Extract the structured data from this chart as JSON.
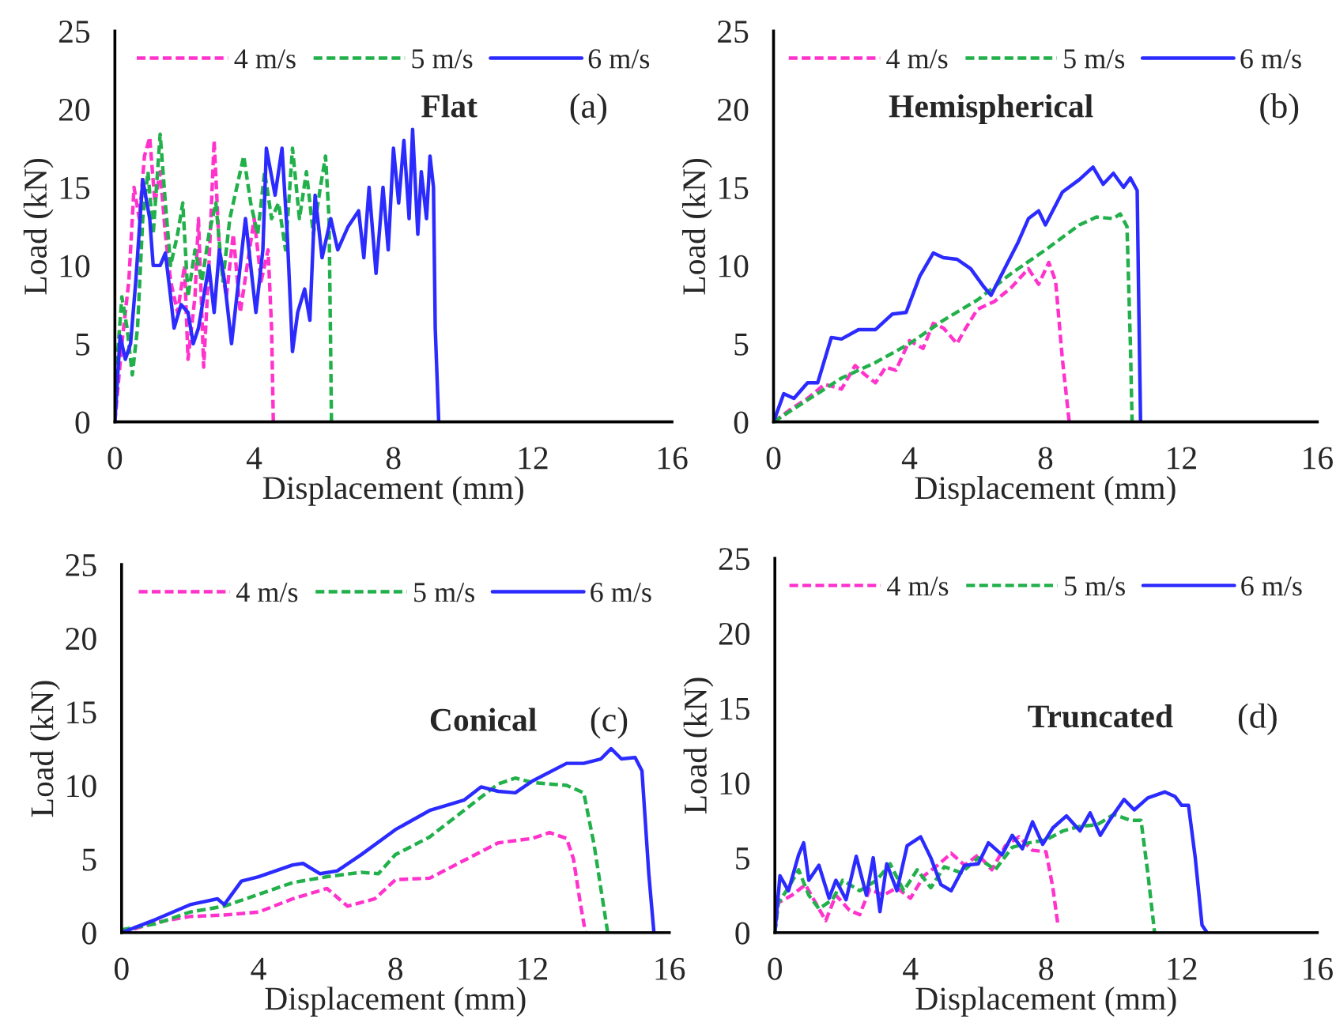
{
  "chart_data": [
    {
      "type": "line",
      "annotations": [
        "Flat",
        "(a)"
      ],
      "xlabel": "Displacement (mm)",
      "ylabel": "Load (kN)",
      "xlim": [
        0,
        16
      ],
      "ylim": [
        0,
        25
      ],
      "xticks": [
        0,
        4,
        8,
        12,
        16
      ],
      "yticks": [
        0,
        5,
        10,
        15,
        20,
        25
      ],
      "legend": "top",
      "grid": false,
      "series": [
        {
          "name": "4 m/s",
          "color": "#ff33cc",
          "line_style": "dashed",
          "x": [
            0,
            0.2,
            0.4,
            0.55,
            0.7,
            0.85,
            1.0,
            1.15,
            1.3,
            1.45,
            1.6,
            1.8,
            2.0,
            2.1,
            2.3,
            2.4,
            2.55,
            2.7,
            2.85,
            3.0,
            3.2,
            3.4,
            3.6,
            3.8,
            4.0,
            4.2,
            4.4,
            4.5,
            4.55
          ],
          "values": [
            0,
            5,
            9,
            15,
            13,
            17,
            18.2,
            14,
            16,
            12,
            9,
            7,
            10,
            4,
            8,
            13,
            3.5,
            10,
            18,
            11,
            8,
            12,
            7,
            10,
            13,
            9,
            11,
            6,
            0
          ]
        },
        {
          "name": "5 m/s",
          "color": "#22b04b",
          "line_style": "dashed",
          "x": [
            0,
            0.2,
            0.35,
            0.5,
            0.65,
            0.8,
            0.95,
            1.1,
            1.3,
            1.45,
            1.6,
            1.8,
            1.95,
            2.1,
            2.3,
            2.5,
            2.7,
            2.9,
            3.1,
            3.3,
            3.5,
            3.7,
            3.9,
            4.1,
            4.3,
            4.5,
            4.7,
            4.9,
            5.1,
            5.3,
            5.5,
            5.7,
            5.9,
            6.05,
            6.15,
            6.2,
            6.22
          ],
          "values": [
            2,
            8,
            6,
            3,
            6,
            13,
            16,
            12,
            18.4,
            14,
            10,
            12,
            14,
            8,
            11,
            9,
            12,
            14,
            9,
            13,
            15,
            17,
            14,
            12,
            16,
            13,
            14,
            11,
            17.5,
            13,
            16,
            12,
            15,
            17,
            13,
            4,
            0
          ]
        },
        {
          "name": "6 m/s",
          "color": "#2b2bff",
          "line_style": "solid",
          "x": [
            0,
            0.15,
            0.3,
            0.45,
            0.6,
            0.8,
            1.0,
            1.1,
            1.3,
            1.45,
            1.6,
            1.7,
            1.9,
            2.1,
            2.25,
            2.4,
            2.55,
            2.7,
            2.85,
            3.0,
            3.15,
            3.35,
            3.55,
            3.75,
            3.9,
            4.05,
            4.25,
            4.35,
            4.6,
            4.8,
            4.95,
            5.1,
            5.25,
            5.45,
            5.6,
            5.75,
            5.95,
            6.2,
            6.4,
            6.7,
            7.0,
            7.15,
            7.3,
            7.5,
            7.7,
            7.85,
            8.0,
            8.15,
            8.3,
            8.45,
            8.55,
            8.7,
            8.8,
            8.95,
            9.05,
            9.15,
            9.2,
            9.3
          ],
          "values": [
            0,
            5.5,
            4,
            5,
            9,
            15.5,
            13,
            10,
            10,
            10.8,
            8,
            6,
            7.5,
            7,
            5,
            6,
            8,
            10,
            7,
            11,
            9,
            5,
            9,
            13,
            10,
            7,
            11,
            17.5,
            14.5,
            17.5,
            12,
            4.5,
            7,
            8.5,
            6.5,
            14.5,
            10.5,
            13,
            11,
            12.5,
            13.5,
            10.5,
            15,
            9.5,
            15,
            11,
            17.5,
            14,
            18,
            13,
            18.7,
            12,
            16,
            13,
            17,
            15,
            6,
            0
          ]
        }
      ]
    },
    {
      "type": "line",
      "annotations": [
        "Hemispherical",
        "(b)"
      ],
      "xlabel": "Displacement (mm)",
      "ylabel": "Load (kN)",
      "xlim": [
        0,
        16
      ],
      "ylim": [
        0,
        25
      ],
      "xticks": [
        0,
        4,
        8,
        12,
        16
      ],
      "yticks": [
        0,
        5,
        10,
        15,
        20,
        25
      ],
      "legend": "top",
      "grid": false,
      "series": [
        {
          "name": "4 m/s",
          "color": "#ff33cc",
          "line_style": "dashed",
          "x": [
            0,
            0.5,
            1.0,
            1.5,
            2.0,
            2.4,
            2.7,
            3.0,
            3.3,
            3.6,
            4.0,
            4.4,
            4.7,
            5.0,
            5.4,
            5.6,
            6.0,
            6.5,
            7.0,
            7.5,
            7.8,
            8.1,
            8.3,
            8.5,
            8.7
          ],
          "values": [
            0,
            0.8,
            1.5,
            2.4,
            2.1,
            3.6,
            3.0,
            2.5,
            3.5,
            3.3,
            5.2,
            4.7,
            6.3,
            6.0,
            5.0,
            5.8,
            7.2,
            7.7,
            8.6,
            9.8,
            8.8,
            10.2,
            9.0,
            4.0,
            0
          ]
        },
        {
          "name": "5 m/s",
          "color": "#22b04b",
          "line_style": "dashed",
          "x": [
            0,
            1,
            2,
            3,
            4,
            5,
            6,
            7,
            8,
            9,
            9.5,
            10,
            10.2,
            10.4,
            10.5,
            10.55
          ],
          "values": [
            0,
            1.4,
            2.8,
            3.8,
            5.0,
            6.5,
            7.8,
            9.5,
            11.0,
            12.6,
            13.1,
            13.0,
            13.3,
            12.5,
            5,
            0
          ]
        },
        {
          "name": "6 m/s",
          "color": "#2b2bff",
          "line_style": "solid",
          "x": [
            0,
            0.3,
            0.6,
            1.0,
            1.3,
            1.7,
            2.0,
            2.5,
            3.0,
            3.5,
            3.9,
            4.3,
            4.7,
            5.0,
            5.4,
            5.8,
            6.2,
            6.4,
            6.8,
            7.2,
            7.5,
            7.8,
            8.0,
            8.5,
            9.0,
            9.4,
            9.7,
            10.0,
            10.3,
            10.5,
            10.7,
            10.75,
            10.8
          ],
          "values": [
            0,
            1.8,
            1.5,
            2.5,
            2.5,
            5.4,
            5.3,
            5.9,
            5.9,
            6.9,
            7.0,
            9.3,
            10.8,
            10.5,
            10.4,
            9.8,
            8.6,
            8.1,
            9.8,
            11.5,
            13.0,
            13.5,
            12.6,
            14.7,
            15.5,
            16.3,
            15.2,
            15.9,
            15.0,
            15.6,
            14.8,
            7,
            0
          ]
        }
      ]
    },
    {
      "type": "line",
      "annotations": [
        "Conical",
        "(c)"
      ],
      "xlabel": "Displacement (mm)",
      "ylabel": "Load (kN)",
      "xlim": [
        0,
        16
      ],
      "ylim": [
        0,
        25
      ],
      "xticks": [
        0,
        4,
        8,
        12,
        16
      ],
      "yticks": [
        0,
        5,
        10,
        15,
        20,
        25
      ],
      "legend": "top",
      "grid": false,
      "series": [
        {
          "name": "4 m/s",
          "color": "#ff33cc",
          "line_style": "dashed",
          "x": [
            0,
            1,
            2,
            3,
            4,
            5,
            6,
            6.6,
            7.4,
            8,
            9,
            10,
            11,
            12,
            12.5,
            13,
            13.2,
            13.4,
            13.55
          ],
          "values": [
            0,
            0.7,
            1.1,
            1.2,
            1.4,
            2.3,
            3.0,
            1.8,
            2.3,
            3.6,
            3.7,
            4.9,
            6.1,
            6.4,
            6.8,
            6.4,
            5.0,
            2,
            0
          ]
        },
        {
          "name": "5 m/s",
          "color": "#22b04b",
          "line_style": "dashed",
          "x": [
            0,
            1,
            2,
            3,
            4,
            5,
            6,
            7,
            7.5,
            8,
            9,
            10,
            11,
            11.5,
            12,
            13,
            13.5,
            13.8,
            14.0,
            14.2
          ],
          "values": [
            0.2,
            0.6,
            1.4,
            1.8,
            2.6,
            3.4,
            3.8,
            4.1,
            4.0,
            5.3,
            6.5,
            8.3,
            10.1,
            10.5,
            10.2,
            10.0,
            9.5,
            6,
            3,
            0
          ]
        },
        {
          "name": "6 m/s",
          "color": "#2b2bff",
          "line_style": "solid",
          "x": [
            0,
            1,
            2,
            2.8,
            3,
            3.5,
            4,
            5,
            5.3,
            5.8,
            6.3,
            7,
            8,
            9,
            10,
            10.5,
            11,
            11.5,
            12,
            13,
            13.5,
            14,
            14.3,
            14.6,
            15.0,
            15.2,
            15.4,
            15.55
          ],
          "values": [
            0,
            0.9,
            1.9,
            2.3,
            1.9,
            3.5,
            3.8,
            4.6,
            4.7,
            4.0,
            4.2,
            5.3,
            7.0,
            8.3,
            9.0,
            9.9,
            9.6,
            9.5,
            10.3,
            11.5,
            11.5,
            11.8,
            12.5,
            11.8,
            11.9,
            11.0,
            4,
            0
          ]
        }
      ]
    },
    {
      "type": "line",
      "annotations": [
        "Truncated",
        "(d)"
      ],
      "xlabel": "Displacement (mm)",
      "ylabel": "Load (kN)",
      "xlim": [
        0,
        16
      ],
      "ylim": [
        0,
        25
      ],
      "xticks": [
        0,
        4,
        8,
        12,
        16
      ],
      "yticks": [
        0,
        5,
        10,
        15,
        20,
        25
      ],
      "legend": "top",
      "grid": false,
      "series": [
        {
          "name": "4 m/s",
          "color": "#ff33cc",
          "line_style": "dashed",
          "x": [
            0,
            0.1,
            0.5,
            0.9,
            1.2,
            1.5,
            1.8,
            2.2,
            2.5,
            2.8,
            3.2,
            3.6,
            4.0,
            4.4,
            4.8,
            5.2,
            5.6,
            6.0,
            6.4,
            6.8,
            7.2,
            7.6,
            8.0,
            8.2,
            8.35
          ],
          "values": [
            0,
            2,
            2.5,
            3.2,
            2.0,
            0.8,
            2.5,
            1.5,
            1.2,
            2.9,
            2.5,
            3.0,
            2.3,
            3.8,
            4.5,
            5.3,
            4.5,
            5.2,
            4.2,
            5.8,
            6.4,
            5.5,
            5.4,
            3,
            0.5
          ]
        },
        {
          "name": "5 m/s",
          "color": "#22b04b",
          "line_style": "dashed",
          "x": [
            0,
            0.1,
            0.4,
            0.7,
            1.0,
            1.3,
            1.7,
            2.0,
            2.5,
            3.0,
            3.4,
            3.8,
            4.2,
            4.6,
            5.0,
            5.5,
            6.0,
            6.5,
            7.0,
            7.5,
            8.0,
            8.5,
            9.0,
            9.5,
            10.0,
            10.5,
            10.8,
            11.0,
            11.2
          ],
          "values": [
            0,
            2,
            3.0,
            4.2,
            2.5,
            1.6,
            2.2,
            3.5,
            2.8,
            3.5,
            4.6,
            2.8,
            4.2,
            3.0,
            4.4,
            4.0,
            5.0,
            4.2,
            5.7,
            6.0,
            6.2,
            6.8,
            7.1,
            7.2,
            7.9,
            7.5,
            7.5,
            4,
            0
          ]
        },
        {
          "name": "6 m/s",
          "color": "#2b2bff",
          "line_style": "solid",
          "x": [
            0,
            0.15,
            0.4,
            0.7,
            0.85,
            1.0,
            1.3,
            1.6,
            1.8,
            2.1,
            2.4,
            2.7,
            2.9,
            3.1,
            3.3,
            3.6,
            3.9,
            4.3,
            4.6,
            4.9,
            5.2,
            5.6,
            6.0,
            6.3,
            6.7,
            7.0,
            7.3,
            7.6,
            7.9,
            8.2,
            8.6,
            9.0,
            9.3,
            9.6,
            9.9,
            10.3,
            10.6,
            11.0,
            11.5,
            11.8,
            12.0,
            12.2,
            12.4,
            12.6,
            12.75
          ],
          "values": [
            0,
            3.8,
            2.8,
            5.2,
            6.0,
            3.5,
            4.5,
            2.3,
            3.5,
            2.2,
            5.1,
            2.5,
            5.0,
            1.4,
            4.6,
            2.8,
            5.8,
            6.4,
            5.0,
            3.2,
            2.8,
            4.5,
            4.6,
            6.0,
            5.2,
            6.5,
            5.6,
            7.4,
            5.9,
            7.0,
            7.8,
            6.8,
            8.0,
            6.5,
            7.6,
            8.9,
            8.2,
            9.0,
            9.4,
            9.1,
            8.5,
            8.5,
            5,
            0.5,
            0
          ]
        }
      ]
    }
  ]
}
